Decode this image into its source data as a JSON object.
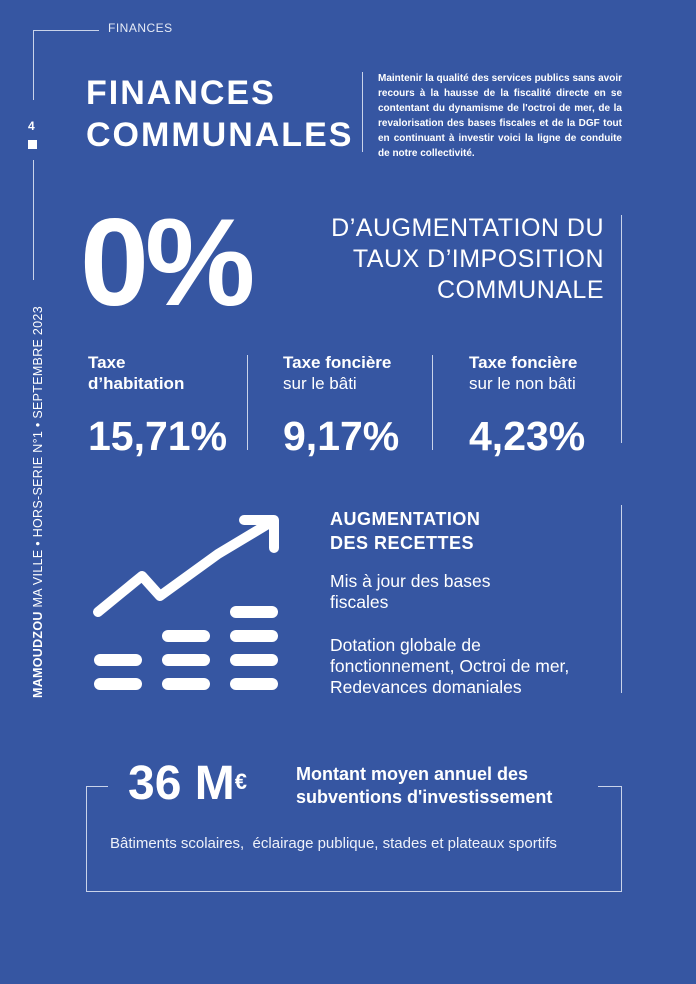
{
  "header": {
    "section": "FINANCES",
    "title_line1": "FINANCES",
    "title_line2": "COMMUNALES",
    "intro": "Maintenir la qualité des services publics sans avoir recours à la hausse de la fiscalité directe en se contentant du dynamisme de l'octroi de mer, de la revalorisation des bases fiscales et de la DGF tout en continuant à investir voici la ligne de conduite de notre collectivité."
  },
  "sidebar": {
    "page_number": "4",
    "brand": "MAMOUDZOU",
    "publication": " MA VILLE • HORS-SERIE N°1 • SEPTEMBRE 2023"
  },
  "tax_rate": {
    "big_value": "0%",
    "headline_line1": "D’AUGMENTATION DU",
    "headline_line2": "TAUX D’IMPOSITION",
    "headline_line3": "COMMUNALE",
    "items": [
      {
        "bold": "Taxe",
        "light": "d’habitation",
        "value": "15,71%"
      },
      {
        "bold": "Taxe foncière",
        "light": "sur le bâti",
        "value": "9,17%"
      },
      {
        "bold": "Taxe foncière",
        "light": "sur le non bâti",
        "value": "4,23%"
      }
    ]
  },
  "growth": {
    "icon": "chart-growth-icon",
    "title_line1": "AUGMENTATION",
    "title_line2": "DES RECETTES",
    "item1_line1": "Mis à jour des bases",
    "item1_line2": "fiscales",
    "item2_line1": "Dotation globale de",
    "item2_line2": "fonctionnement, Octroi de mer,",
    "item2_line3": "Redevances domaniales"
  },
  "subventions": {
    "amount": "36 M",
    "currency": "€",
    "label_line1": "Montant moyen annuel des",
    "label_line2": "subventions d'investissement",
    "description": "Bâtiments scolaires,  éclairage publique, stades et plateaux sportifs"
  },
  "colors": {
    "background": "#3656a2",
    "text": "#ffffff",
    "rule": "#c9d3ea"
  }
}
